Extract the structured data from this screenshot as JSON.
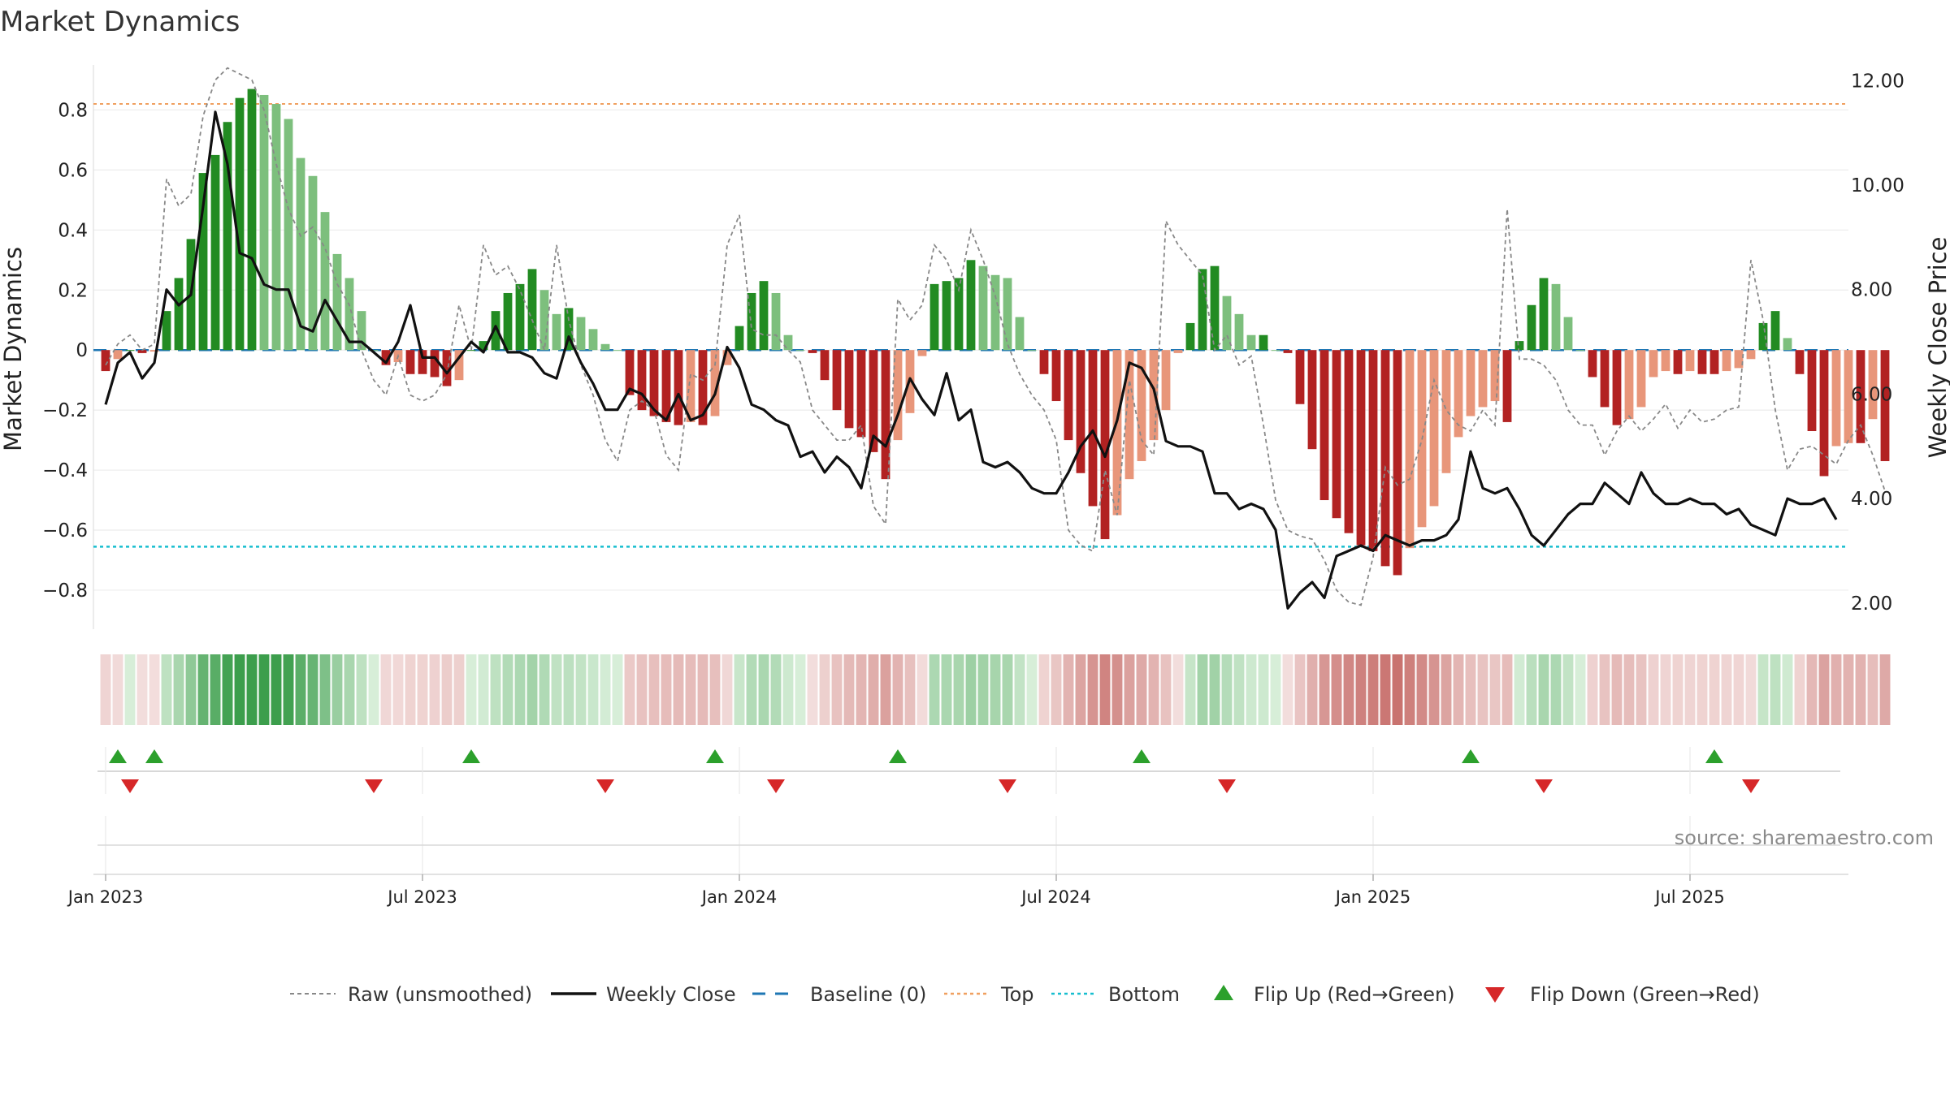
{
  "chart_data": {
    "type": "bar",
    "title": "Market Dynamics",
    "ylabel_left": "Market Dynamics",
    "ylabel_right": "Weekly Close Price",
    "ylim_left": [
      -0.93,
      0.95
    ],
    "ylim_right": [
      1.5,
      12.3
    ],
    "yticks_left": [
      -0.8,
      -0.6,
      -0.4,
      -0.2,
      0,
      0.2,
      0.4,
      0.6,
      0.8
    ],
    "yticks_left_labels": [
      "−0.8",
      "−0.6",
      "−0.4",
      "−0.2",
      "0",
      "0.2",
      "0.4",
      "0.6",
      "0.8"
    ],
    "yticks_right": [
      2,
      4,
      6,
      8,
      10,
      12
    ],
    "yticks_right_labels": [
      "2.00",
      "4.00",
      "6.00",
      "8.00",
      "10.00",
      "12.00"
    ],
    "x_labels": [
      "Jan 2023",
      "Jul 2023",
      "Jan 2024",
      "Jul 2024",
      "Jan 2025",
      "Jul 2025"
    ],
    "x_label_weeks": [
      0,
      26,
      52,
      78,
      104,
      130
    ],
    "week_range": [
      -1,
      143
    ],
    "top_line": 0.82,
    "bottom_line": -0.655,
    "baseline": 0,
    "series": [
      {
        "name": "Market Dynamics",
        "values": [
          -0.07,
          -0.03,
          0.0,
          -0.01,
          -0.005,
          0.13,
          0.24,
          0.37,
          0.59,
          0.65,
          0.76,
          0.84,
          0.87,
          0.85,
          0.82,
          0.77,
          0.64,
          0.58,
          0.46,
          0.32,
          0.24,
          0.13,
          0.0,
          -0.05,
          -0.04,
          -0.08,
          -0.08,
          -0.09,
          -0.12,
          -0.1,
          0.0,
          0.03,
          0.13,
          0.19,
          0.22,
          0.27,
          0.2,
          0.12,
          0.14,
          0.11,
          0.07,
          0.02,
          0.0,
          -0.15,
          -0.2,
          -0.22,
          -0.24,
          -0.25,
          -0.24,
          -0.25,
          -0.22,
          -0.05,
          0.08,
          0.19,
          0.23,
          0.19,
          0.05,
          0.0,
          -0.01,
          -0.1,
          -0.2,
          -0.26,
          -0.29,
          -0.34,
          -0.43,
          -0.3,
          -0.21,
          -0.02,
          0.22,
          0.23,
          0.24,
          0.3,
          0.28,
          0.25,
          0.24,
          0.11,
          0.0,
          -0.08,
          -0.17,
          -0.3,
          -0.41,
          -0.52,
          -0.63,
          -0.55,
          -0.43,
          -0.37,
          -0.3,
          -0.2,
          -0.01,
          0.09,
          0.27,
          0.28,
          0.18,
          0.12,
          0.05,
          0.05,
          0.0,
          -0.01,
          -0.18,
          -0.33,
          -0.5,
          -0.56,
          -0.61,
          -0.65,
          -0.67,
          -0.72,
          -0.75,
          -0.66,
          -0.59,
          -0.52,
          -0.41,
          -0.29,
          -0.22,
          -0.19,
          -0.17,
          -0.24,
          0.03,
          0.15,
          0.24,
          0.22,
          0.11,
          0.0,
          -0.09,
          -0.19,
          -0.25,
          -0.23,
          -0.19,
          -0.09,
          -0.07,
          -0.08,
          -0.07,
          -0.08,
          -0.08,
          -0.07,
          -0.06,
          -0.03,
          0.09,
          0.13,
          0.04,
          -0.08,
          -0.27,
          -0.42,
          -0.32,
          -0.31,
          -0.31,
          -0.23,
          -0.37
        ]
      },
      {
        "name": "Raw (unsmoothed)",
        "values": [
          -0.05,
          0.02,
          0.05,
          0.0,
          0.02,
          0.57,
          0.48,
          0.52,
          0.78,
          0.9,
          0.94,
          0.92,
          0.9,
          0.8,
          0.62,
          0.47,
          0.38,
          0.41,
          0.34,
          0.22,
          0.15,
          0.0,
          -0.1,
          -0.15,
          -0.02,
          -0.15,
          -0.17,
          -0.15,
          -0.08,
          0.15,
          0.0,
          0.35,
          0.25,
          0.28,
          0.2,
          0.1,
          0.0,
          0.35,
          0.1,
          -0.05,
          -0.15,
          -0.3,
          -0.37,
          -0.2,
          -0.17,
          -0.2,
          -0.35,
          -0.4,
          -0.08,
          -0.1,
          -0.05,
          0.35,
          0.45,
          0.07,
          0.05,
          0.05,
          0.0,
          -0.04,
          -0.2,
          -0.25,
          -0.3,
          -0.3,
          -0.25,
          -0.52,
          -0.58,
          0.17,
          0.1,
          0.15,
          0.35,
          0.3,
          0.2,
          0.4,
          0.3,
          0.18,
          0.02,
          -0.08,
          -0.15,
          -0.2,
          -0.3,
          -0.6,
          -0.65,
          -0.67,
          -0.4,
          -0.55,
          -0.1,
          -0.3,
          -0.35,
          0.43,
          0.35,
          0.3,
          0.25,
          0.0,
          0.05,
          -0.05,
          -0.02,
          -0.25,
          -0.5,
          -0.6,
          -0.62,
          -0.63,
          -0.7,
          -0.8,
          -0.84,
          -0.85,
          -0.69,
          -0.39,
          -0.45,
          -0.43,
          -0.3,
          -0.1,
          -0.2,
          -0.25,
          -0.27,
          -0.2,
          -0.25,
          0.47,
          -0.03,
          -0.03,
          -0.05,
          -0.1,
          -0.2,
          -0.25,
          -0.25,
          -0.35,
          -0.27,
          -0.22,
          -0.27,
          -0.23,
          -0.18,
          -0.26,
          -0.2,
          -0.24,
          -0.23,
          -0.2,
          -0.19,
          0.3,
          0.1,
          -0.2,
          -0.4,
          -0.33,
          -0.32,
          -0.35,
          -0.38,
          -0.3,
          -0.25,
          -0.35,
          -0.47
        ]
      },
      {
        "name": "Weekly Close",
        "values": [
          5.8,
          6.6,
          6.8,
          6.3,
          6.6,
          8.0,
          7.7,
          7.9,
          9.6,
          11.4,
          10.4,
          8.7,
          8.6,
          8.1,
          8.0,
          8.0,
          7.3,
          7.2,
          7.8,
          7.4,
          7.0,
          7.0,
          6.8,
          6.6,
          7.0,
          7.7,
          6.7,
          6.7,
          6.4,
          6.7,
          7.0,
          6.8,
          7.3,
          6.8,
          6.8,
          6.7,
          6.4,
          6.3,
          7.1,
          6.6,
          6.2,
          5.7,
          5.7,
          6.1,
          6.0,
          5.7,
          5.5,
          6.0,
          5.5,
          5.6,
          6.0,
          6.9,
          6.5,
          5.8,
          5.7,
          5.5,
          5.4,
          4.8,
          4.9,
          4.5,
          4.8,
          4.6,
          4.2,
          5.2,
          5.0,
          5.6,
          6.3,
          5.9,
          5.6,
          6.4,
          5.5,
          5.7,
          4.7,
          4.6,
          4.7,
          4.5,
          4.2,
          4.1,
          4.1,
          4.5,
          5.0,
          5.3,
          4.8,
          5.5,
          6.6,
          6.5,
          6.1,
          5.1,
          5.0,
          5.0,
          4.9,
          4.1,
          4.1,
          3.8,
          3.9,
          3.8,
          3.4,
          1.9,
          2.2,
          2.4,
          2.1,
          2.9,
          3.0,
          3.1,
          3.0,
          3.3,
          3.2,
          3.1,
          3.2,
          3.2,
          3.3,
          3.6,
          4.9,
          4.2,
          4.1,
          4.2,
          3.8,
          3.3,
          3.1,
          3.4,
          3.7,
          3.9,
          3.9,
          4.3,
          4.1,
          3.9,
          4.5,
          4.1,
          3.9,
          3.9,
          4.0,
          3.9,
          3.9,
          3.7,
          3.8,
          3.5,
          3.4,
          3.3,
          4.0,
          3.9,
          3.9,
          4.0,
          3.6
        ]
      }
    ],
    "heat_strip": {
      "description_colors": {
        "strong_green": "#4aa85a",
        "light_green": "#a8d5ad",
        "strong_red": "#cc7a76",
        "light_red": "#f0d2d1"
      }
    },
    "flip_up_weeks": [
      1,
      4,
      30,
      50,
      65,
      85,
      112,
      132
    ],
    "flip_down_weeks": [
      2,
      22,
      41,
      55,
      74,
      92,
      118,
      135
    ],
    "legend": {
      "position": "bottom-center",
      "items": [
        {
          "label": "Raw (unsmoothed)",
          "style": "dashed-gray"
        },
        {
          "label": "Weekly Close",
          "style": "solid-black"
        },
        {
          "label": "Baseline (0)",
          "style": "dashed-blue"
        },
        {
          "label": "Top",
          "style": "dotted-orange"
        },
        {
          "label": "Bottom",
          "style": "dotted-cyan"
        },
        {
          "label": "Flip Up (Red→Green)",
          "style": "triangle-up-green"
        },
        {
          "label": "Flip Down (Green→Red)",
          "style": "triangle-down-red"
        }
      ]
    },
    "colors": {
      "pos_strong": "#228b22",
      "pos_light": "#7dbf7d",
      "neg_strong": "#b22222",
      "neg_light": "#e8967a",
      "weekly_close": "#111111",
      "raw": "#888888",
      "baseline": "#1f77b4",
      "top": "#f0a060",
      "bottom": "#17becf",
      "flip_up": "#2ca02c",
      "flip_down": "#d62728"
    },
    "grid": true
  },
  "source_text": "source: sharemaestro.com"
}
